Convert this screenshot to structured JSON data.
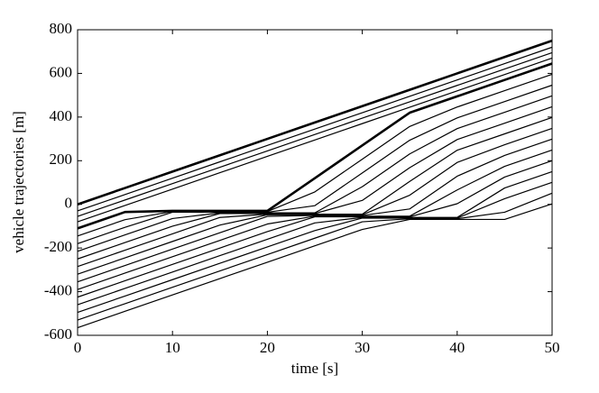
{
  "chart_data": {
    "type": "line",
    "xlabel": "time [s]",
    "ylabel": "vehicle trajectories [m]",
    "x": [
      0,
      5,
      10,
      15,
      20,
      25,
      30,
      35,
      40,
      45,
      50
    ],
    "xlim": [
      0,
      50
    ],
    "xticks": [
      0,
      10,
      20,
      30,
      40,
      50
    ],
    "ylim": [
      -600,
      800
    ],
    "yticks": [
      -600,
      -400,
      -200,
      0,
      200,
      400,
      600,
      800
    ],
    "series": [
      {
        "color": "#000000",
        "line_width": 2.6,
        "values": [
          0,
          75,
          150,
          225,
          300,
          375,
          450,
          525,
          600,
          675,
          750
        ]
      },
      {
        "color": "#000000",
        "line_width": 1.2,
        "values": [
          -30,
          45,
          120,
          195,
          270,
          345,
          420,
          495,
          570,
          645,
          720
        ]
      },
      {
        "color": "#000000",
        "line_width": 1.2,
        "values": [
          -55,
          20,
          95,
          170,
          245,
          320,
          395,
          470,
          545,
          620,
          695
        ]
      },
      {
        "color": "#000000",
        "line_width": 1.2,
        "values": [
          -80,
          -5,
          70,
          145,
          220,
          295,
          370,
          445,
          520,
          595,
          670
        ]
      },
      {
        "color": "#000000",
        "line_width": 2.6,
        "values": [
          -110,
          -35,
          -30,
          -30,
          -30,
          120,
          270,
          420,
          495,
          570,
          645
        ]
      },
      {
        "color": "#000000",
        "line_width": 1.2,
        "values": [
          -145,
          -70,
          -33,
          -33,
          -33,
          57,
          207,
          357,
          446,
          521,
          596
        ]
      },
      {
        "color": "#000000",
        "line_width": 1.2,
        "values": [
          -180,
          -105,
          -36,
          -36,
          -36,
          -6,
          144,
          294,
          396,
          471,
          546
        ]
      },
      {
        "color": "#000000",
        "line_width": 1.2,
        "values": [
          -215,
          -140,
          -65,
          -39,
          -39,
          -39,
          81,
          231,
          347,
          422,
          497
        ]
      },
      {
        "color": "#000000",
        "line_width": 1.2,
        "values": [
          -250,
          -175,
          -100,
          -42,
          -42,
          -42,
          18,
          168,
          297,
          372,
          447
        ]
      },
      {
        "color": "#000000",
        "line_width": 1.2,
        "values": [
          -285,
          -210,
          -135,
          -60,
          -45,
          -45,
          -45,
          105,
          248,
          323,
          398
        ]
      },
      {
        "color": "#000000",
        "line_width": 1.2,
        "values": [
          -320,
          -245,
          -170,
          -95,
          -48,
          -48,
          -48,
          42,
          192,
          273,
          348
        ]
      },
      {
        "color": "#000000",
        "line_width": 1.2,
        "values": [
          -355,
          -280,
          -205,
          -130,
          -55,
          -51,
          -51,
          -21,
          129,
          224,
          299
        ]
      },
      {
        "color": "#000000",
        "line_width": 1.2,
        "values": [
          -390,
          -315,
          -240,
          -165,
          -90,
          -54,
          -54,
          -54,
          66,
          174,
          249
        ]
      },
      {
        "color": "#000000",
        "line_width": 1.2,
        "values": [
          -425,
          -350,
          -275,
          -200,
          -125,
          -57,
          -57,
          -57,
          3,
          125,
          200
        ]
      },
      {
        "color": "#000000",
        "line_width": 1.2,
        "values": [
          -460,
          -385,
          -310,
          -235,
          -160,
          -85,
          -60,
          -60,
          -60,
          75,
          150
        ]
      },
      {
        "color": "#000000",
        "line_width": 1.2,
        "values": [
          -495,
          -420,
          -345,
          -270,
          -195,
          -120,
          -63,
          -63,
          -63,
          26,
          101
        ]
      },
      {
        "color": "#000000",
        "line_width": 1.2,
        "values": [
          -530,
          -455,
          -380,
          -305,
          -230,
          -155,
          -80,
          -66,
          -66,
          -36,
          51
        ]
      },
      {
        "color": "#000000",
        "line_width": 1.2,
        "values": [
          -565,
          -490,
          -415,
          -340,
          -265,
          -190,
          -115,
          -69,
          -69,
          -69,
          2
        ]
      }
    ]
  }
}
